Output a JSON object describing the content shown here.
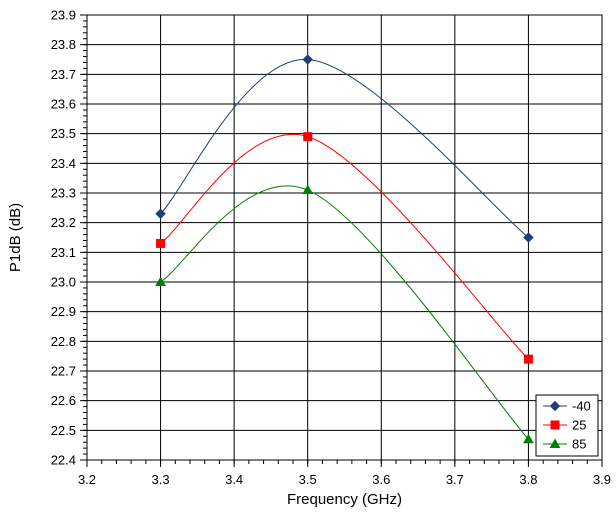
{
  "chart_data": {
    "type": "line",
    "title": "",
    "xlabel": "Frequency (GHz)",
    "ylabel": "P1dB (dB)",
    "xlim": [
      3.2,
      3.9
    ],
    "ylim": [
      22.4,
      23.9
    ],
    "x_ticks": [
      "3.2",
      "3.3",
      "3.4",
      "3.5",
      "3.6",
      "3.7",
      "3.8",
      "3.9"
    ],
    "y_ticks": [
      "22.4",
      "22.5",
      "22.6",
      "22.7",
      "22.8",
      "22.9",
      "23.0",
      "23.1",
      "23.2",
      "23.3",
      "23.4",
      "23.5",
      "23.6",
      "23.7",
      "23.8",
      "23.9"
    ],
    "grid": true,
    "legend_position": "bottom-right",
    "x": [
      3.3,
      3.5,
      3.8
    ],
    "series": [
      {
        "name": "-40",
        "values": [
          23.23,
          23.75,
          23.15
        ],
        "color": "#1f3f7a",
        "marker": "diamond"
      },
      {
        "name": "25",
        "values": [
          23.13,
          23.49,
          22.74
        ],
        "color": "#ff0000",
        "marker": "square"
      },
      {
        "name": "85",
        "values": [
          23.0,
          23.31,
          22.47
        ],
        "color": "#008000",
        "marker": "triangle"
      }
    ]
  }
}
